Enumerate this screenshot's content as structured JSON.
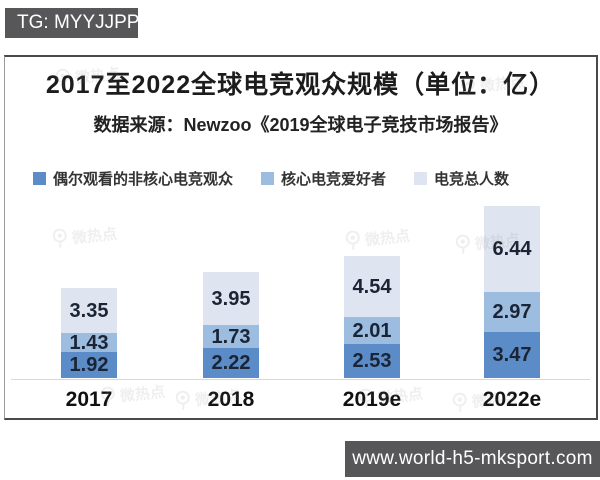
{
  "top_banner": {
    "text": "TG: MYYJJPP"
  },
  "bottom_banner": {
    "text": "www.world-h5-mksport.com"
  },
  "watermark": {
    "label": "微热点"
  },
  "chart_data": {
    "type": "bar",
    "stacked": true,
    "title": "2017至2022全球电竞观众规模（单位：亿）",
    "subtitle": "数据来源：Newzoo《2019全球电子竞技市场报告》",
    "categories": [
      "2017",
      "2018",
      "2019e",
      "2022e"
    ],
    "series": [
      {
        "name": "偶尔观看的非核心电竞观众",
        "color": "#5b8cc8",
        "values": [
          1.92,
          2.22,
          2.53,
          3.47
        ]
      },
      {
        "name": "核心电竞爱好者",
        "color": "#9cbde0",
        "values": [
          1.43,
          1.73,
          2.01,
          2.97
        ]
      },
      {
        "name": "电竞总人数",
        "color": "#dee5f0",
        "values": [
          3.35,
          3.95,
          4.54,
          6.44
        ]
      }
    ],
    "legend_position": "top-left",
    "grid": false,
    "value_labels": true,
    "ylim": [
      0,
      13
    ]
  },
  "colors": {
    "banner_bg": "#57575a",
    "value_label": "#1b2434",
    "axis_line": "#d8d8d8",
    "panel_border": "#4a4a4a"
  }
}
